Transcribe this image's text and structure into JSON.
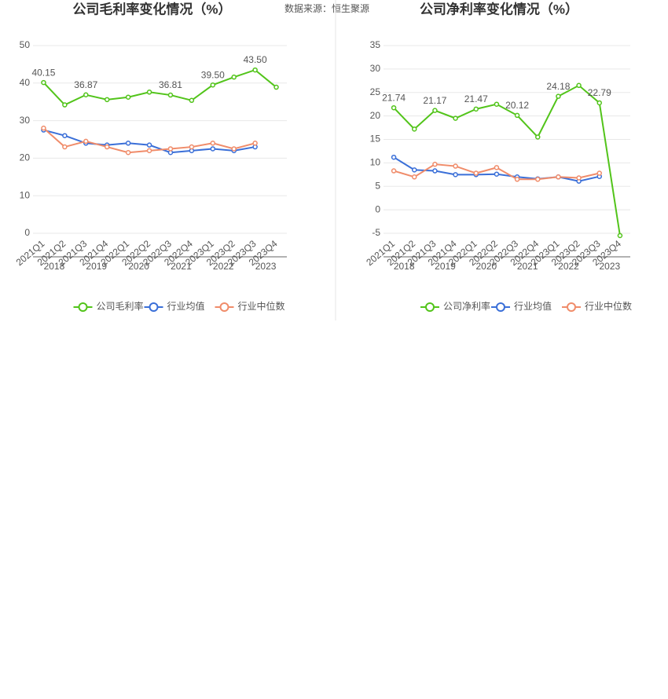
{
  "source": "数据来源：恒生聚源",
  "chart_data": [
    {
      "type": "line",
      "title": "公司毛利率变化情况（%）",
      "categories": [
        "2021Q1",
        "2021Q2",
        "2021Q3",
        "2021Q4",
        "2022Q1",
        "2022Q2",
        "2022Q3",
        "2022Q4",
        "2023Q1",
        "2023Q2",
        "2023Q3",
        "2023Q4"
      ],
      "years": [
        "2018",
        "2019",
        "2020",
        "2021",
        "2022",
        "2023"
      ],
      "ylim": [
        0,
        50
      ],
      "yticks": [
        0,
        10,
        20,
        30,
        40,
        50
      ],
      "grid": true,
      "series": [
        {
          "name": "公司毛利率",
          "color": "#52c41a",
          "values": [
            40.15,
            34.2,
            36.87,
            35.6,
            36.25,
            37.6,
            36.81,
            35.4,
            39.5,
            41.6,
            43.5,
            38.9
          ],
          "value_labels": [
            "40.15",
            null,
            "36.87",
            null,
            null,
            null,
            "36.81",
            null,
            "39.50",
            null,
            "43.50",
            null
          ]
        },
        {
          "name": "行业均值",
          "color": "#3a6fd8",
          "values": [
            27.5,
            26.0,
            24.0,
            23.5,
            24.0,
            23.5,
            21.5,
            22.0,
            22.5,
            22.0,
            23.0,
            null
          ]
        },
        {
          "name": "行业中位数",
          "color": "#f08c6a",
          "values": [
            28.0,
            23.0,
            24.5,
            23.0,
            21.5,
            22.0,
            22.5,
            23.0,
            24.0,
            22.5,
            24.0,
            null
          ]
        }
      ]
    },
    {
      "type": "line",
      "title": "公司净利率变化情况（%）",
      "categories": [
        "2021Q1",
        "2021Q2",
        "2021Q3",
        "2021Q4",
        "2022Q1",
        "2022Q2",
        "2022Q3",
        "2022Q4",
        "2023Q1",
        "2023Q2",
        "2023Q3",
        "2023Q4"
      ],
      "years": [
        "2018",
        "2019",
        "2020",
        "2021",
        "2022",
        "2023"
      ],
      "ylim": [
        -5,
        35
      ],
      "yticks": [
        -5,
        0,
        5,
        10,
        15,
        20,
        25,
        30,
        35
      ],
      "grid": true,
      "series": [
        {
          "name": "公司净利率",
          "color": "#52c41a",
          "values": [
            21.74,
            17.2,
            21.17,
            19.5,
            21.47,
            22.5,
            20.12,
            15.5,
            24.18,
            26.5,
            22.79,
            -5.5
          ],
          "value_labels": [
            "21.74",
            null,
            "21.17",
            null,
            "21.47",
            null,
            "20.12",
            null,
            "24.18",
            null,
            "22.79",
            null
          ]
        },
        {
          "name": "行业均值",
          "color": "#3a6fd8",
          "values": [
            11.2,
            8.5,
            8.3,
            7.5,
            7.5,
            7.6,
            7.0,
            6.6,
            7.0,
            6.1,
            7.1,
            null
          ]
        },
        {
          "name": "行业中位数",
          "color": "#f08c6a",
          "values": [
            8.3,
            7.0,
            9.7,
            9.3,
            7.8,
            9.0,
            6.5,
            6.5,
            7.0,
            6.8,
            7.8,
            null
          ]
        }
      ]
    }
  ]
}
